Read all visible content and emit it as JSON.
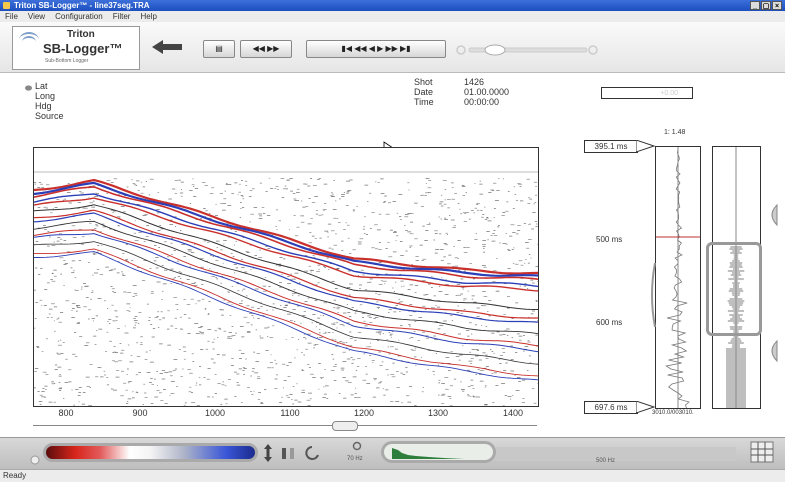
{
  "window": {
    "title": "Triton SB-Logger™ - line37seg.TRA",
    "min": "_",
    "max": "▢",
    "close": "×"
  },
  "menu": [
    "File",
    "View",
    "Configuration",
    "Filter",
    "Help"
  ],
  "logo": {
    "line1": "Triton",
    "line2": "SB-Logger™",
    "line3": "Sub-Bottom Logger"
  },
  "nav": {
    "lat": "Lat",
    "long": "Long",
    "hdg": "Hdg",
    "source": "Source"
  },
  "shot": {
    "shot_label": "Shot",
    "date_label": "Date",
    "time_label": "Time",
    "shot": "1426",
    "date": "01.00.0000",
    "time": "00:00:00"
  },
  "readout_value": "+0.00",
  "profile": {
    "x_ticks": [
      "800",
      "900",
      "1000",
      "1100",
      "1200",
      "1300",
      "1400"
    ]
  },
  "depth": {
    "top_ms": "395.1 ms",
    "bottom_ms": "697.6 ms",
    "ratio": "1: 1.48",
    "mark_500": "500 ms",
    "mark_600": "600 ms",
    "trace_caption": "3010.0/003010."
  },
  "bottom": {
    "freq_left": "70 Hz",
    "freq_right": "500 Hz"
  },
  "status": "Ready",
  "colors": {
    "titlebar": "#2a5ccc",
    "red": "#d8251b",
    "blue": "#1b2b8e"
  }
}
